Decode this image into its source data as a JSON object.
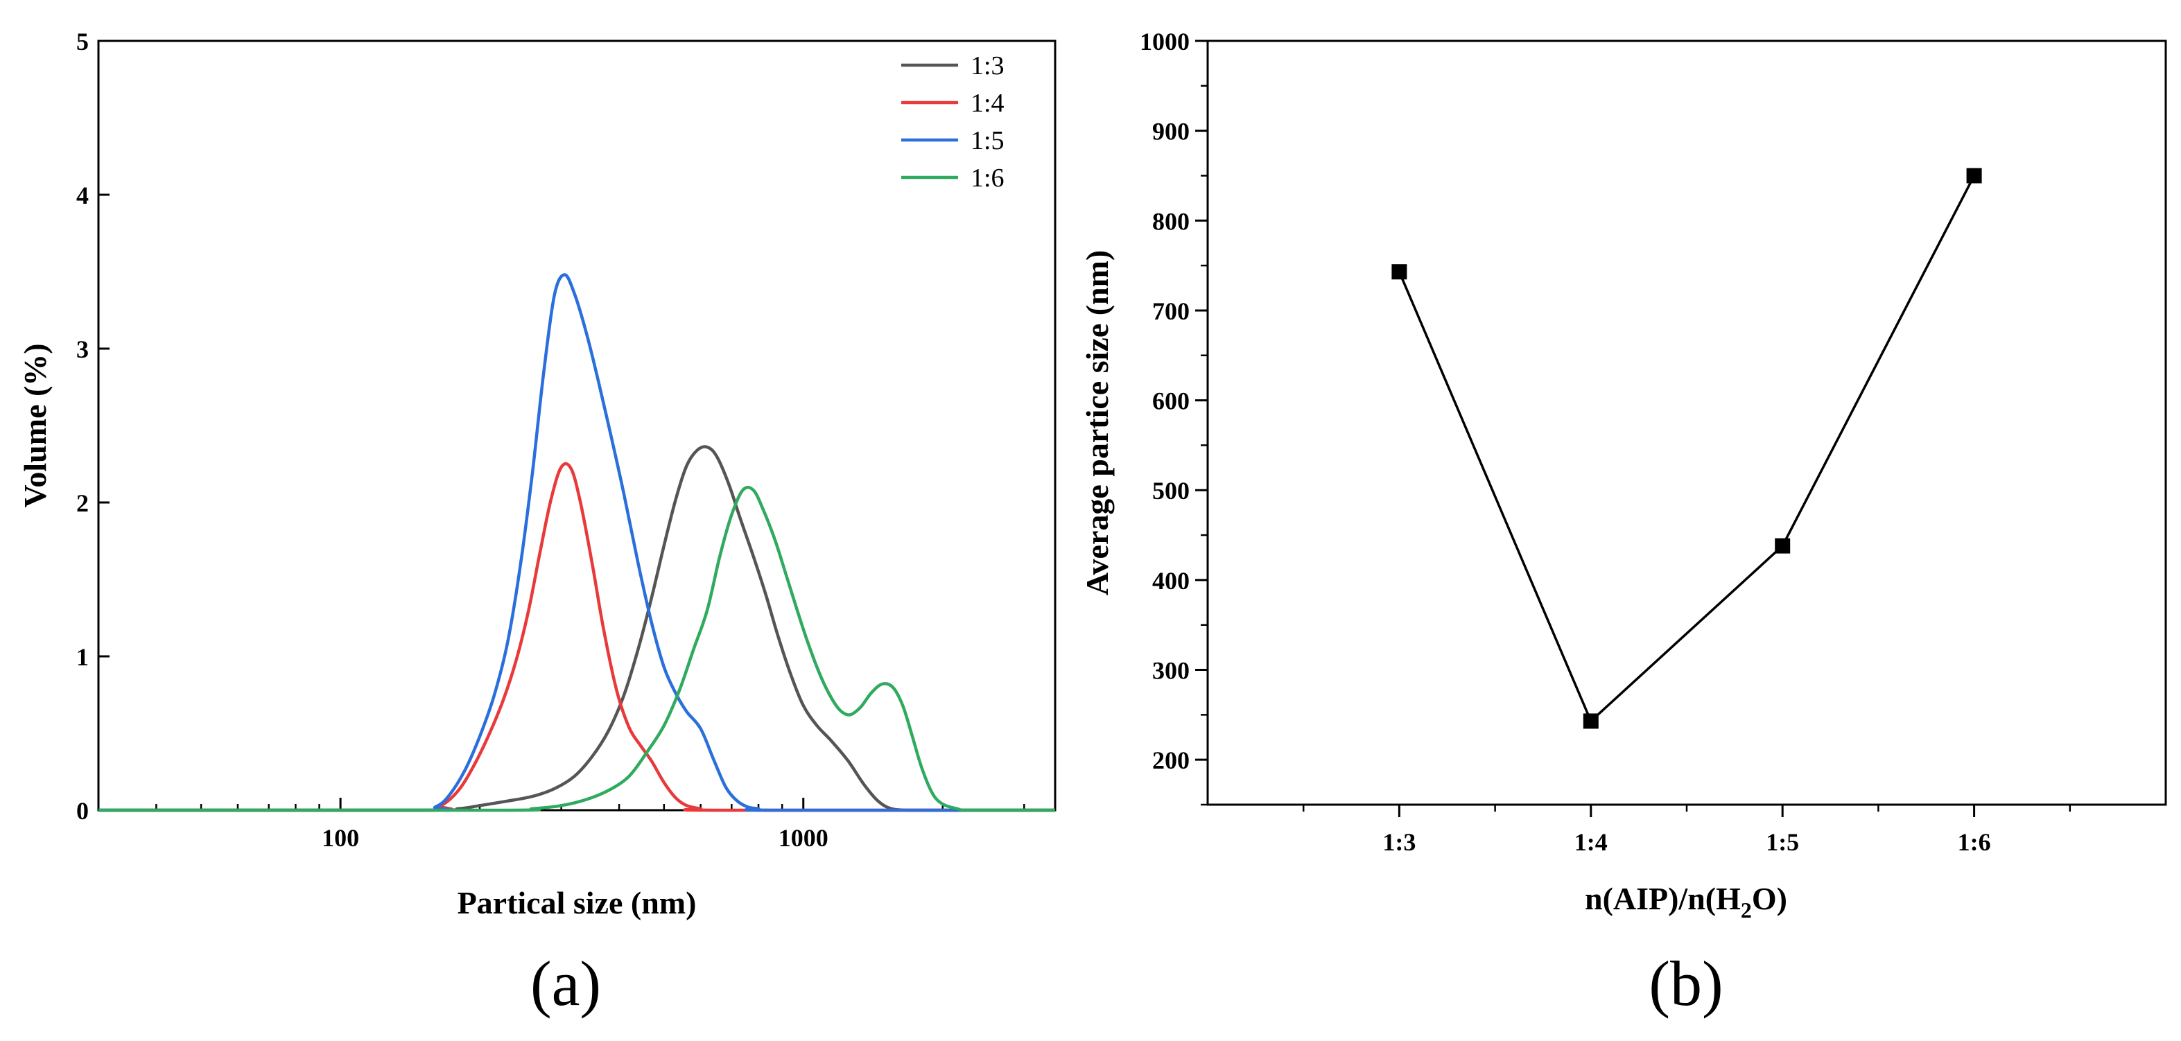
{
  "chart_data": [
    {
      "type": "line",
      "panel": "(a)",
      "xlabel": "Partical size (nm)",
      "ylabel": "Volume (%)",
      "xscale": "log",
      "xlim": [
        30,
        3500
      ],
      "ylim": [
        0,
        5
      ],
      "xticks": [
        100,
        1000
      ],
      "xtick_labels": [
        "100",
        "1000"
      ],
      "yticks": [
        0,
        1,
        2,
        3,
        4,
        5
      ],
      "legend_position": "top-right",
      "series": [
        {
          "name": "1:3",
          "color": "#555555",
          "x": [
            30,
            150,
            180,
            200,
            230,
            260,
            290,
            320,
            350,
            380,
            410,
            440,
            470,
            500,
            530,
            560,
            590,
            620,
            650,
            690,
            730,
            780,
            830,
            880,
            940,
            1000,
            1070,
            1150,
            1250,
            1350,
            1450,
            1550,
            1700,
            2000,
            3500
          ],
          "y": [
            0,
            0,
            0.01,
            0.03,
            0.06,
            0.09,
            0.14,
            0.22,
            0.35,
            0.52,
            0.75,
            1.05,
            1.38,
            1.72,
            2.02,
            2.24,
            2.34,
            2.36,
            2.3,
            2.12,
            1.9,
            1.65,
            1.4,
            1.14,
            0.88,
            0.68,
            0.55,
            0.45,
            0.32,
            0.17,
            0.06,
            0.01,
            0,
            0,
            0
          ]
        },
        {
          "name": "1:4",
          "color": "#e8393b",
          "x": [
            30,
            150,
            165,
            180,
            195,
            210,
            225,
            240,
            255,
            270,
            285,
            300,
            315,
            330,
            350,
            370,
            395,
            420,
            445,
            470,
            500,
            530,
            560,
            600,
            640,
            3500
          ],
          "y": [
            0,
            0,
            0.03,
            0.13,
            0.3,
            0.5,
            0.72,
            0.98,
            1.3,
            1.68,
            2.02,
            2.23,
            2.22,
            2.0,
            1.6,
            1.18,
            0.78,
            0.54,
            0.42,
            0.32,
            0.18,
            0.08,
            0.03,
            0.01,
            0,
            0
          ]
        },
        {
          "name": "1:5",
          "color": "#2a6fdb",
          "x": [
            30,
            150,
            160,
            170,
            185,
            200,
            215,
            230,
            245,
            260,
            275,
            290,
            305,
            320,
            340,
            360,
            385,
            410,
            440,
            470,
            500,
            530,
            560,
            600,
            640,
            680,
            720,
            760,
            800,
            850,
            3500
          ],
          "y": [
            0,
            0,
            0.02,
            0.08,
            0.25,
            0.48,
            0.75,
            1.1,
            1.6,
            2.2,
            2.85,
            3.35,
            3.48,
            3.36,
            3.1,
            2.8,
            2.42,
            2.05,
            1.6,
            1.22,
            0.93,
            0.76,
            0.64,
            0.53,
            0.33,
            0.15,
            0.06,
            0.02,
            0.01,
            0,
            0
          ]
        },
        {
          "name": "1:6",
          "color": "#2faa5e",
          "x": [
            30,
            220,
            260,
            300,
            340,
            380,
            420,
            460,
            500,
            540,
            580,
            620,
            660,
            700,
            740,
            780,
            820,
            870,
            920,
            970,
            1020,
            1080,
            1140,
            1200,
            1260,
            1330,
            1400,
            1480,
            1560,
            1640,
            1720,
            1800,
            1900,
            2000,
            2150,
            2300,
            3500
          ],
          "y": [
            0,
            0,
            0.01,
            0.03,
            0.07,
            0.13,
            0.22,
            0.38,
            0.55,
            0.78,
            1.05,
            1.3,
            1.65,
            1.92,
            2.08,
            2.08,
            1.95,
            1.75,
            1.52,
            1.3,
            1.1,
            0.9,
            0.75,
            0.65,
            0.62,
            0.67,
            0.76,
            0.82,
            0.8,
            0.68,
            0.48,
            0.28,
            0.11,
            0.04,
            0.01,
            0,
            0
          ]
        }
      ]
    },
    {
      "type": "line",
      "panel": "(b)",
      "xlabel": "n(AIP)/n(H2O)",
      "xlabel_parts": {
        "pre": "n(AIP)/n(H",
        "sub": "2",
        "post": "O)"
      },
      "ylabel": "Average partice size (nm)",
      "categories": [
        "1:3",
        "1:4",
        "1:5",
        "1:6"
      ],
      "values": [
        743,
        243,
        438,
        850
      ],
      "ylim": [
        150,
        1000
      ],
      "yticks": [
        200,
        300,
        400,
        500,
        600,
        700,
        800,
        900,
        1000
      ],
      "marker": "square",
      "color": "#000000"
    }
  ]
}
